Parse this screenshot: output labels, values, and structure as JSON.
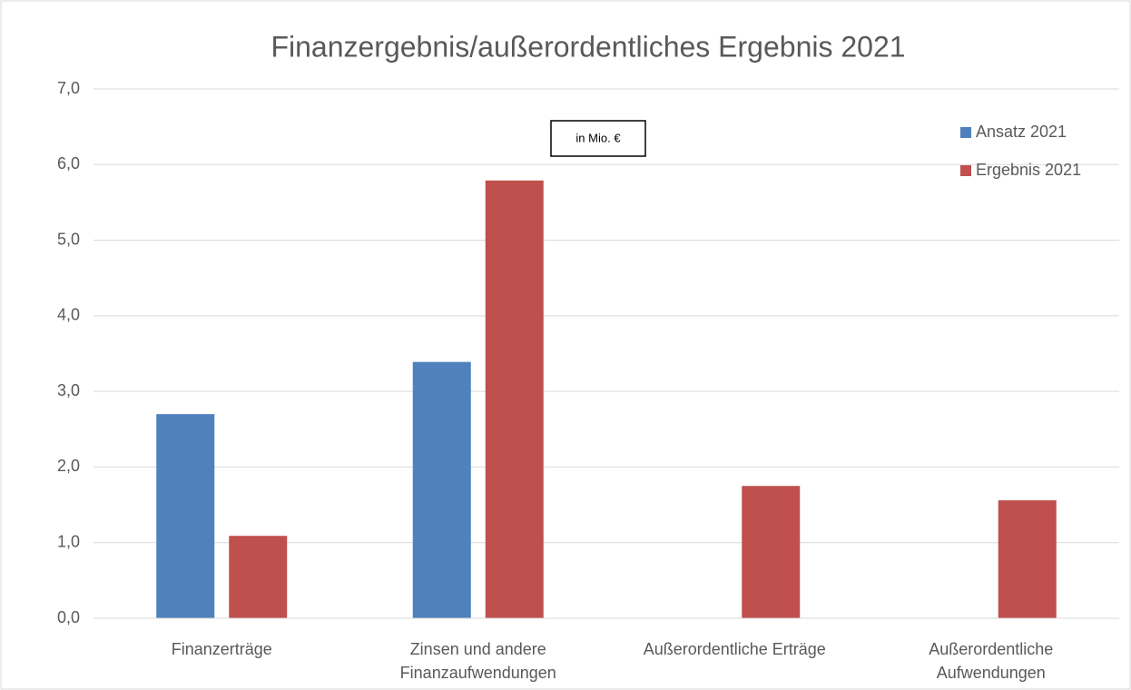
{
  "chart_data": {
    "type": "bar",
    "title": "Finanzergebnis/außerordentliches Ergebnis 2021",
    "annotation": "in Mio. €",
    "categories": [
      "Finanzerträge",
      "Zinsen und andere Finanzaufwendungen",
      "Außerordentliche Erträge",
      "Außerordentliche Aufwendungen"
    ],
    "series": [
      {
        "name": "Ansatz 2021",
        "color": "#4f81bd",
        "values": [
          2.7,
          3.39,
          0,
          0
        ]
      },
      {
        "name": "Ergebnis 2021",
        "color": "#c0504d",
        "values": [
          1.09,
          5.79,
          1.75,
          1.56
        ]
      }
    ],
    "ylim": [
      0,
      7
    ],
    "yticks": [
      {
        "value": 0,
        "label": "0,0"
      },
      {
        "value": 1,
        "label": "1,0"
      },
      {
        "value": 2,
        "label": "2,0"
      },
      {
        "value": 3,
        "label": "3,0"
      },
      {
        "value": 4,
        "label": "4,0"
      },
      {
        "value": 5,
        "label": "5,0"
      },
      {
        "value": 6,
        "label": "6,0"
      },
      {
        "value": 7,
        "label": "7,0"
      }
    ],
    "grid": true,
    "legend": "top-right"
  }
}
